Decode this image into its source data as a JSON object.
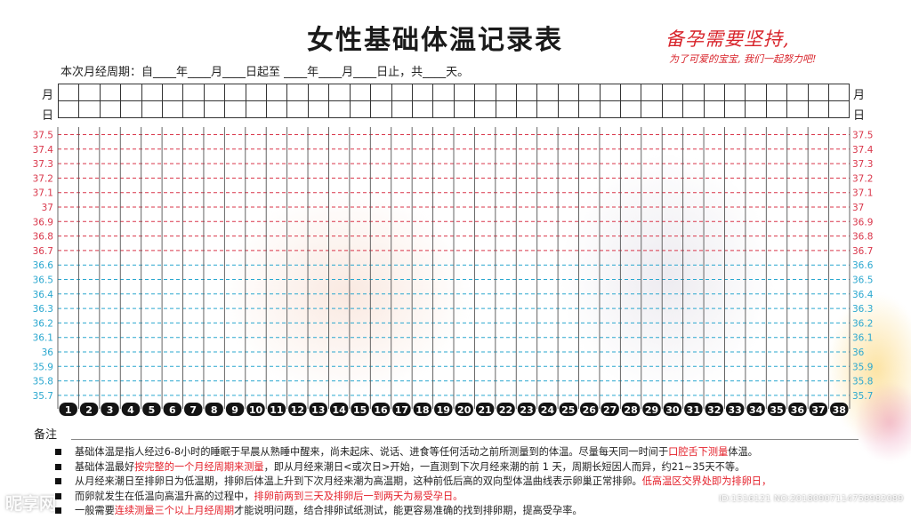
{
  "header": {
    "title": "女性基础体温记录表",
    "slogan_main": "备孕需要坚持,",
    "slogan_sub": "为了可爱的宝宝, 我们一起努力吧!",
    "cycle_line": "本次月经周期：自____年____月____日起至 ____年____月____日止，共____天。"
  },
  "date_rows": {
    "month_label": "月",
    "day_label": "日",
    "column_count": 38
  },
  "chart_data": {
    "type": "table",
    "temperatures": [
      "37.5",
      "37.4",
      "37.3",
      "37.2",
      "37.1",
      "37",
      "36.9",
      "36.8",
      "36.7",
      "36.6",
      "36.5",
      "36.4",
      "36.3",
      "36.2",
      "36.1",
      "36",
      "35.9",
      "35.8",
      "35.7"
    ],
    "days": [
      "1",
      "2",
      "3",
      "4",
      "5",
      "6",
      "7",
      "8",
      "9",
      "10",
      "11",
      "12",
      "13",
      "14",
      "15",
      "16",
      "17",
      "18",
      "19",
      "20",
      "21",
      "22",
      "23",
      "24",
      "25",
      "26",
      "27",
      "28",
      "29",
      "30",
      "31",
      "32",
      "33",
      "34",
      "35",
      "36",
      "37",
      "38"
    ],
    "high_zone_color": "#d9364a",
    "low_zone_color": "#2aa7cf"
  },
  "notes": {
    "label": "备注",
    "items": [
      [
        {
          "t": "基础体温是指人经过6-8小时的睡眠于早晨从熟睡中醒来，尚未起床、说话、进食等任何活动之前所测量到的体温。尽量每天同一时间于"
        },
        {
          "t": "口腔舌下测量",
          "hl": true
        },
        {
          "t": "体温。"
        }
      ],
      [
        {
          "t": "基础体温最好"
        },
        {
          "t": "按完整的一个月经周期来测量",
          "hl": true
        },
        {
          "t": "，即从月经来潮日<或次日>开始，一直测到下次月经来潮的前 1 天，周期长短因人而异，约21~35天不等。"
        }
      ],
      [
        {
          "t": "从月经来潮日至排卵日为低温期，排卵后体温上升到下次月经来潮为高温期，这种前低后高的双向型体温曲线表示卵巢正常排卵。"
        },
        {
          "t": "低高温区交界处即为排卵日，",
          "hl": true
        }
      ],
      [
        {
          "t": "而卵就发生在低温向高温升高的过程中，"
        },
        {
          "t": "排卵前两到三天及排卵后一到两天为易受孕日。",
          "hl": true
        }
      ],
      [
        {
          "t": "一般需要"
        },
        {
          "t": "连续测量三个以上月经周期",
          "hl": true
        },
        {
          "t": "才能说明问题，结合排卵试纸测试，能更容易准确的找到排卵期，提高受孕率。"
        }
      ]
    ]
  },
  "watermarks": {
    "left": "昵享网",
    "right": "ID:1516121 NO:20180907114758982089"
  }
}
